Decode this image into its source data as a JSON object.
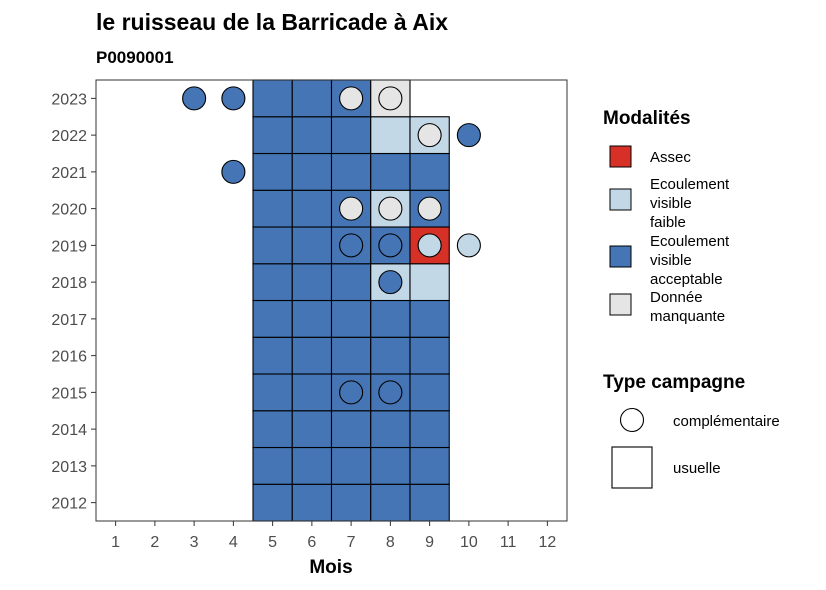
{
  "chart_data": {
    "type": "heatmap",
    "title": "le ruisseau de la Barricade à Aix",
    "subtitle": "P0090001",
    "xlabel": "Mois",
    "ylabel": "",
    "x_ticks": [
      "1",
      "2",
      "3",
      "4",
      "5",
      "6",
      "7",
      "8",
      "9",
      "10",
      "11",
      "12"
    ],
    "y_ticks": [
      "2012",
      "2013",
      "2014",
      "2015",
      "2016",
      "2017",
      "2018",
      "2019",
      "2020",
      "2021",
      "2022",
      "2023"
    ],
    "xlim": [
      0.5,
      12.5
    ],
    "ylim": [
      2011.5,
      2023.5
    ],
    "grid": false,
    "colors": {
      "assec": "#d73027",
      "faible": "#c2d8e6",
      "acceptable": "#4575b4",
      "manquante": "#e5e5e5"
    },
    "usuelle": [
      {
        "year": 2012,
        "month": 5,
        "status": "acceptable"
      },
      {
        "year": 2012,
        "month": 6,
        "status": "acceptable"
      },
      {
        "year": 2012,
        "month": 7,
        "status": "acceptable"
      },
      {
        "year": 2012,
        "month": 8,
        "status": "acceptable"
      },
      {
        "year": 2012,
        "month": 9,
        "status": "acceptable"
      },
      {
        "year": 2013,
        "month": 5,
        "status": "acceptable"
      },
      {
        "year": 2013,
        "month": 6,
        "status": "acceptable"
      },
      {
        "year": 2013,
        "month": 7,
        "status": "acceptable"
      },
      {
        "year": 2013,
        "month": 8,
        "status": "acceptable"
      },
      {
        "year": 2013,
        "month": 9,
        "status": "acceptable"
      },
      {
        "year": 2014,
        "month": 5,
        "status": "acceptable"
      },
      {
        "year": 2014,
        "month": 6,
        "status": "acceptable"
      },
      {
        "year": 2014,
        "month": 7,
        "status": "acceptable"
      },
      {
        "year": 2014,
        "month": 8,
        "status": "acceptable"
      },
      {
        "year": 2014,
        "month": 9,
        "status": "acceptable"
      },
      {
        "year": 2015,
        "month": 5,
        "status": "acceptable"
      },
      {
        "year": 2015,
        "month": 6,
        "status": "acceptable"
      },
      {
        "year": 2015,
        "month": 7,
        "status": "acceptable"
      },
      {
        "year": 2015,
        "month": 8,
        "status": "acceptable"
      },
      {
        "year": 2015,
        "month": 9,
        "status": "acceptable"
      },
      {
        "year": 2016,
        "month": 5,
        "status": "acceptable"
      },
      {
        "year": 2016,
        "month": 6,
        "status": "acceptable"
      },
      {
        "year": 2016,
        "month": 7,
        "status": "acceptable"
      },
      {
        "year": 2016,
        "month": 8,
        "status": "acceptable"
      },
      {
        "year": 2016,
        "month": 9,
        "status": "acceptable"
      },
      {
        "year": 2017,
        "month": 5,
        "status": "acceptable"
      },
      {
        "year": 2017,
        "month": 6,
        "status": "acceptable"
      },
      {
        "year": 2017,
        "month": 7,
        "status": "acceptable"
      },
      {
        "year": 2017,
        "month": 8,
        "status": "acceptable"
      },
      {
        "year": 2017,
        "month": 9,
        "status": "acceptable"
      },
      {
        "year": 2018,
        "month": 5,
        "status": "acceptable"
      },
      {
        "year": 2018,
        "month": 6,
        "status": "acceptable"
      },
      {
        "year": 2018,
        "month": 7,
        "status": "acceptable"
      },
      {
        "year": 2018,
        "month": 8,
        "status": "faible"
      },
      {
        "year": 2018,
        "month": 9,
        "status": "faible"
      },
      {
        "year": 2019,
        "month": 5,
        "status": "acceptable"
      },
      {
        "year": 2019,
        "month": 6,
        "status": "acceptable"
      },
      {
        "year": 2019,
        "month": 7,
        "status": "acceptable"
      },
      {
        "year": 2019,
        "month": 8,
        "status": "acceptable"
      },
      {
        "year": 2019,
        "month": 9,
        "status": "assec"
      },
      {
        "year": 2020,
        "month": 5,
        "status": "acceptable"
      },
      {
        "year": 2020,
        "month": 6,
        "status": "acceptable"
      },
      {
        "year": 2020,
        "month": 7,
        "status": "acceptable"
      },
      {
        "year": 2020,
        "month": 8,
        "status": "faible"
      },
      {
        "year": 2020,
        "month": 9,
        "status": "acceptable"
      },
      {
        "year": 2021,
        "month": 5,
        "status": "acceptable"
      },
      {
        "year": 2021,
        "month": 6,
        "status": "acceptable"
      },
      {
        "year": 2021,
        "month": 7,
        "status": "acceptable"
      },
      {
        "year": 2021,
        "month": 8,
        "status": "acceptable"
      },
      {
        "year": 2021,
        "month": 9,
        "status": "acceptable"
      },
      {
        "year": 2022,
        "month": 5,
        "status": "acceptable"
      },
      {
        "year": 2022,
        "month": 6,
        "status": "acceptable"
      },
      {
        "year": 2022,
        "month": 7,
        "status": "acceptable"
      },
      {
        "year": 2022,
        "month": 8,
        "status": "faible"
      },
      {
        "year": 2022,
        "month": 9,
        "status": "faible"
      },
      {
        "year": 2023,
        "month": 5,
        "status": "acceptable"
      },
      {
        "year": 2023,
        "month": 6,
        "status": "acceptable"
      },
      {
        "year": 2023,
        "month": 7,
        "status": "acceptable"
      },
      {
        "year": 2023,
        "month": 8,
        "status": "manquante"
      }
    ],
    "complementaire": [
      {
        "year": 2023,
        "month": 3,
        "status": "acceptable"
      },
      {
        "year": 2023,
        "month": 4,
        "status": "acceptable"
      },
      {
        "year": 2023,
        "month": 7,
        "status": "manquante"
      },
      {
        "year": 2023,
        "month": 8,
        "status": "manquante"
      },
      {
        "year": 2022,
        "month": 9,
        "status": "manquante"
      },
      {
        "year": 2022,
        "month": 10,
        "status": "acceptable"
      },
      {
        "year": 2021,
        "month": 4,
        "status": "acceptable"
      },
      {
        "year": 2020,
        "month": 7,
        "status": "manquante"
      },
      {
        "year": 2020,
        "month": 8,
        "status": "manquante"
      },
      {
        "year": 2020,
        "month": 9,
        "status": "manquante"
      },
      {
        "year": 2019,
        "month": 7,
        "status": "acceptable"
      },
      {
        "year": 2019,
        "month": 8,
        "status": "acceptable"
      },
      {
        "year": 2019,
        "month": 9,
        "status": "faible"
      },
      {
        "year": 2019,
        "month": 10,
        "status": "faible"
      },
      {
        "year": 2018,
        "month": 8,
        "status": "acceptable"
      },
      {
        "year": 2015,
        "month": 7,
        "status": "acceptable"
      },
      {
        "year": 2015,
        "month": 8,
        "status": "acceptable"
      }
    ],
    "legend": {
      "placement": "right",
      "modalites_title": "Modalités",
      "modalites": [
        {
          "key": "assec",
          "lines": [
            "Assec"
          ]
        },
        {
          "key": "faible",
          "lines": [
            "Ecoulement",
            "visible",
            "faible"
          ]
        },
        {
          "key": "acceptable",
          "lines": [
            "Ecoulement",
            "visible",
            "acceptable"
          ]
        },
        {
          "key": "manquante",
          "lines": [
            "Donnée",
            "manquante"
          ]
        }
      ],
      "type_title": "Type campagne",
      "types": [
        {
          "key": "complementaire",
          "label": "complémentaire"
        },
        {
          "key": "usuelle",
          "label": "usuelle"
        }
      ]
    }
  }
}
